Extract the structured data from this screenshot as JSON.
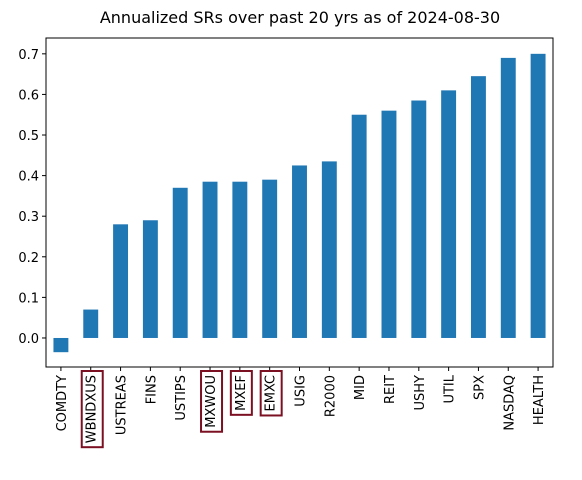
{
  "chart_data": {
    "type": "bar",
    "title": "Annualized SRs over past 20 yrs as of 2024-08-30",
    "categories": [
      "COMDTY",
      "WBNDXUS",
      "USTREAS",
      "FINS",
      "USTIPS",
      "MXWOU",
      "MXEF",
      "EMXC",
      "USIG",
      "R2000",
      "MID",
      "REIT",
      "USHY",
      "UTIL",
      "SPX",
      "NASDAQ",
      "HEALTH"
    ],
    "values": [
      -0.035,
      0.07,
      0.28,
      0.29,
      0.37,
      0.385,
      0.385,
      0.39,
      0.425,
      0.435,
      0.55,
      0.56,
      0.585,
      0.61,
      0.645,
      0.69,
      0.7
    ],
    "color": "#1f77b4",
    "highlighted": [
      false,
      true,
      false,
      false,
      false,
      true,
      true,
      true,
      false,
      false,
      false,
      false,
      false,
      false,
      false,
      false,
      false
    ],
    "highlight_color": "#7b1022",
    "ylim": [
      -0.0715,
      0.739
    ],
    "yticks": [
      {
        "value": 0,
        "label": "0.0"
      },
      0.1,
      0.2,
      0.3,
      0.4,
      0.5,
      0.6,
      0.7
    ]
  }
}
